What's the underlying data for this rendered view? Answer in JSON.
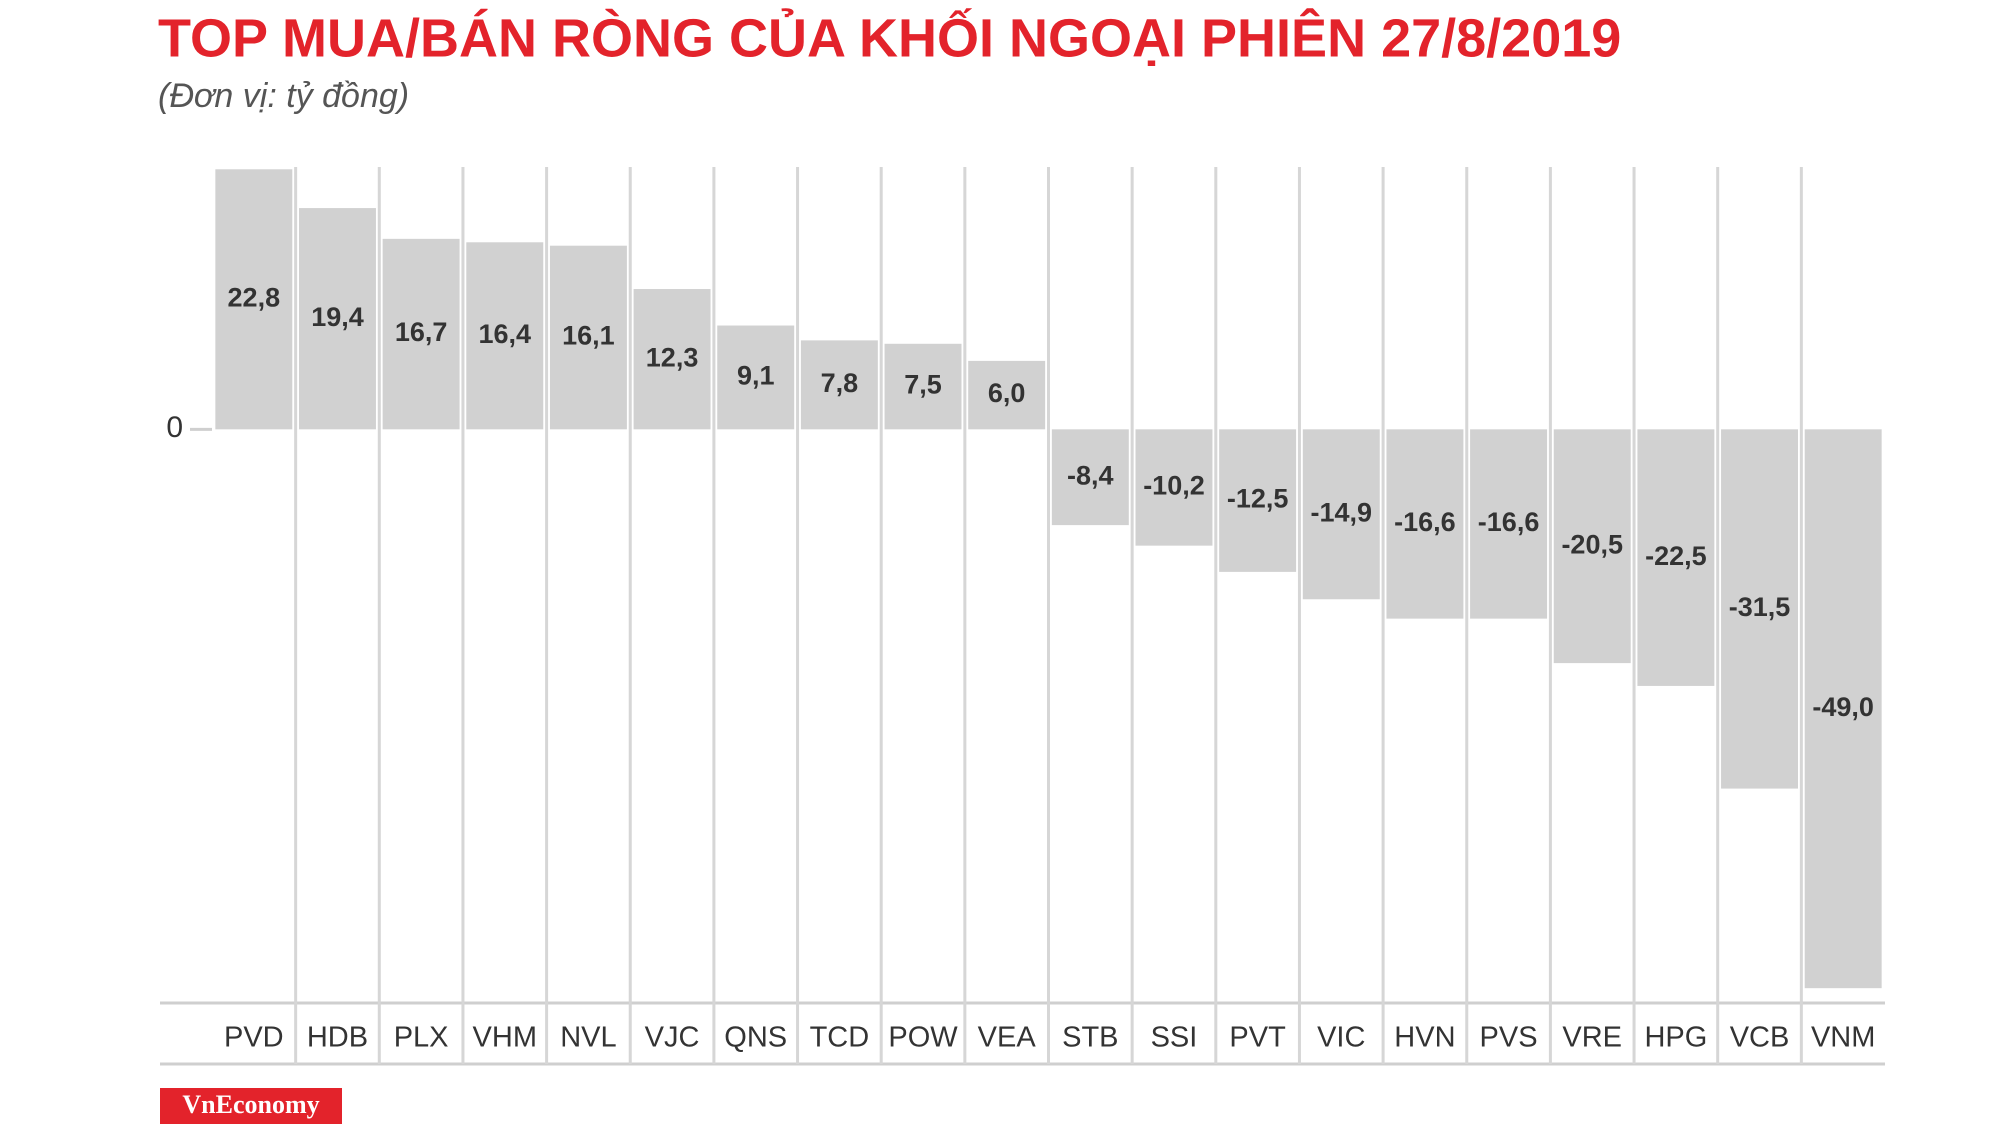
{
  "chart_data": {
    "type": "bar",
    "title": "TOP MUA/BÁN RÒNG CỦA KHỐI NGOẠI PHIÊN 27/8/2019",
    "subtitle": "(Đơn vị: tỷ đồng)",
    "categories": [
      "PVD",
      "HDB",
      "PLX",
      "VHM",
      "NVL",
      "VJC",
      "QNS",
      "TCD",
      "POW",
      "VEA",
      "STB",
      "SSI",
      "PVT",
      "VIC",
      "HVN",
      "PVS",
      "VRE",
      "HPG",
      "VCB",
      "VNM"
    ],
    "values": [
      22.8,
      19.4,
      16.7,
      16.4,
      16.1,
      12.3,
      9.1,
      7.8,
      7.5,
      6.0,
      -8.4,
      -10.2,
      -12.5,
      -14.9,
      -16.6,
      -16.6,
      -20.5,
      -22.5,
      -31.5,
      -49.0
    ],
    "value_labels": [
      "22,8",
      "19,4",
      "16,7",
      "16,4",
      "16,1",
      "12,3",
      "9,1",
      "7,8",
      "7,5",
      "6,0",
      "-8,4",
      "-10,2",
      "-12,5",
      "-14,9",
      "-16,6",
      "-16,6",
      "-20,5",
      "-22,5",
      "-31,5",
      "-49,0"
    ],
    "color": "#d1d1d1",
    "ylim": [
      -50.3,
      23
    ],
    "yticks": [
      0
    ],
    "brand": "VnEconomy"
  }
}
